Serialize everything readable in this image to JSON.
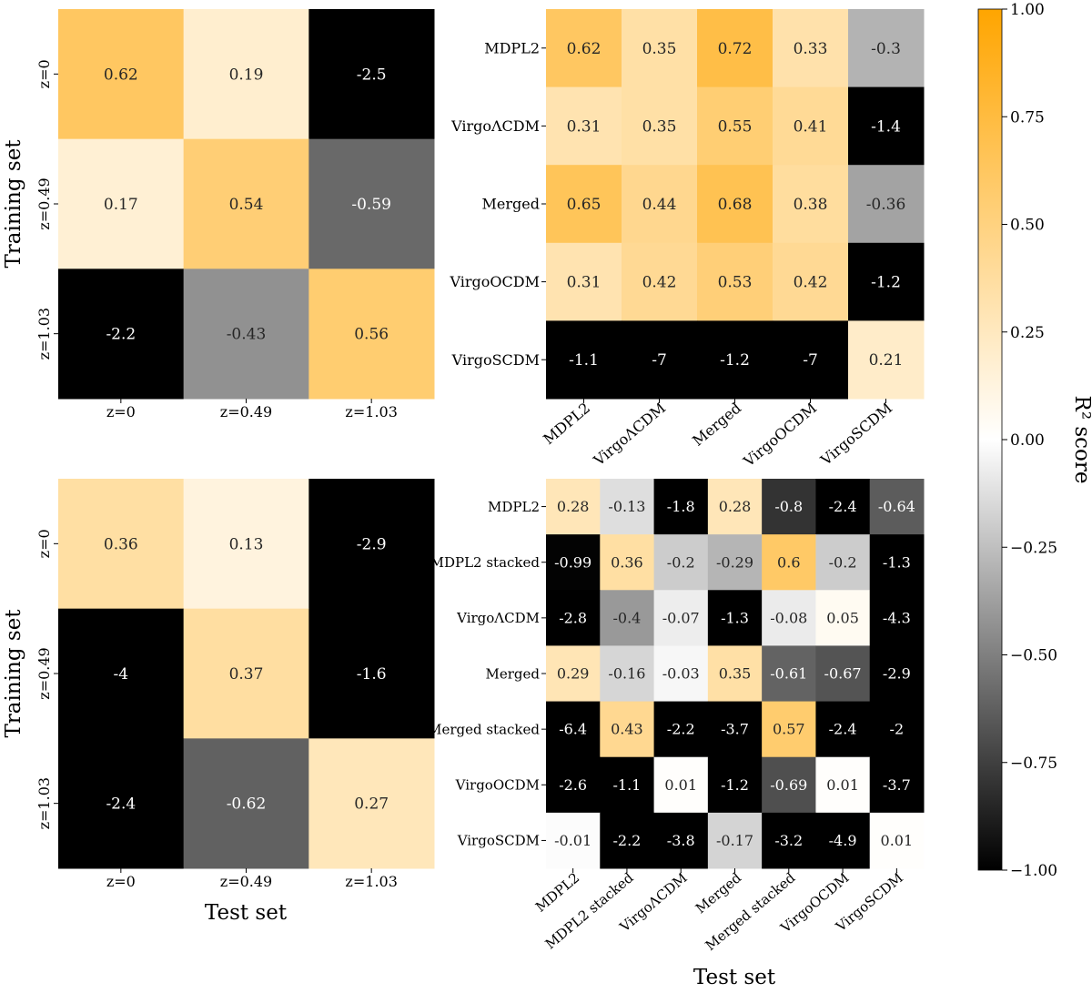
{
  "chart_data": [
    {
      "type": "heatmap",
      "id": "top-left",
      "rows": [
        "z=0",
        "z=0.49",
        "z=1.03"
      ],
      "cols": [
        "z=0",
        "z=0.49",
        "z=1.03"
      ],
      "values": [
        [
          0.62,
          0.19,
          -2.5
        ],
        [
          0.17,
          0.54,
          -0.59
        ],
        [
          -2.2,
          -0.43,
          0.56
        ]
      ],
      "ylabel": "Training set",
      "xlabel": ""
    },
    {
      "type": "heatmap",
      "id": "top-right",
      "rows": [
        "MDPL2",
        "VirgoΛCDM",
        "Merged",
        "VirgoOCDM",
        "VirgoSCDM"
      ],
      "cols": [
        "MDPL2",
        "VirgoΛCDM",
        "Merged",
        "VirgoOCDM",
        "VirgoSCDM"
      ],
      "values": [
        [
          0.62,
          0.35,
          0.72,
          0.33,
          -0.3
        ],
        [
          0.31,
          0.35,
          0.55,
          0.41,
          -1.4
        ],
        [
          0.65,
          0.44,
          0.68,
          0.38,
          -0.36
        ],
        [
          0.31,
          0.42,
          0.53,
          0.42,
          -1.2
        ],
        [
          -1.1,
          -7,
          -1.2,
          -7,
          0.21
        ]
      ],
      "ylabel": "",
      "xlabel": ""
    },
    {
      "type": "heatmap",
      "id": "bottom-left",
      "rows": [
        "z=0",
        "z=0.49",
        "z=1.03"
      ],
      "cols": [
        "z=0",
        "z=0.49",
        "z=1.03"
      ],
      "values": [
        [
          0.36,
          0.13,
          -2.9
        ],
        [
          -4,
          0.37,
          -1.6
        ],
        [
          -2.4,
          -0.62,
          0.27
        ]
      ],
      "ylabel": "Training set",
      "xlabel": "Test set"
    },
    {
      "type": "heatmap",
      "id": "bottom-right",
      "rows": [
        "MDPL2",
        "MDPL2 stacked",
        "VirgoΛCDM",
        "Merged",
        "Merged stacked",
        "VirgoOCDM",
        "VirgoSCDM"
      ],
      "cols": [
        "MDPL2",
        "MDPL2 stacked",
        "VirgoΛCDM",
        "Merged",
        "Merged stacked",
        "VirgoOCDM",
        "VirgoSCDM"
      ],
      "values": [
        [
          0.28,
          -0.13,
          -1.8,
          0.28,
          -0.8,
          -2.4,
          -0.64
        ],
        [
          -0.99,
          0.36,
          -0.2,
          -0.29,
          0.6,
          -0.2,
          -1.3
        ],
        [
          -2.8,
          -0.4,
          -0.07,
          -1.3,
          -0.08,
          0.05,
          -4.3
        ],
        [
          0.29,
          -0.16,
          -0.03,
          0.35,
          -0.61,
          -0.67,
          -2.9
        ],
        [
          -6.4,
          0.43,
          -2.2,
          -3.7,
          0.57,
          -2.4,
          -2
        ],
        [
          -2.6,
          -1.1,
          0.01,
          -1.2,
          -0.69,
          0.01,
          -3.7
        ],
        [
          -0.01,
          -2.2,
          -3.8,
          -0.17,
          -3.2,
          -4.9,
          0.01
        ]
      ],
      "ylabel": "",
      "xlabel": "Test set"
    }
  ],
  "colorbar": {
    "label": "R² score",
    "vmin": -1.0,
    "vmax": 1.0,
    "ticks": [
      "1.00",
      "0.75",
      "0.50",
      "0.25",
      "0.00",
      "−0.25",
      "−0.50",
      "−0.75",
      "−1.00"
    ],
    "colors": {
      "min": "#000000",
      "mid": "#ffffff",
      "max": "#ffa500"
    }
  }
}
